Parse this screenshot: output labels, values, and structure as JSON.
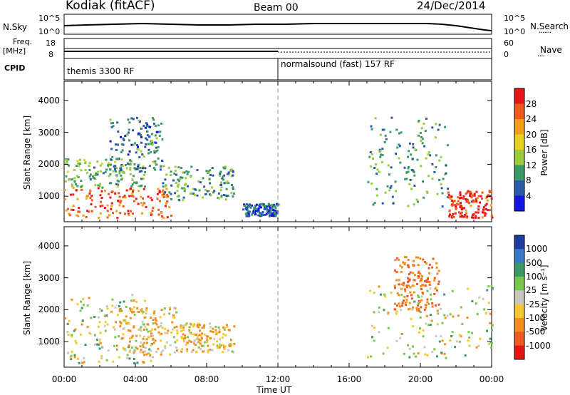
{
  "header": {
    "site": "Kodiak (fitACF)",
    "beam": "Beam 00",
    "date": "24/Dec/2014"
  },
  "panels": {
    "nsky": {
      "label": "N.Sky",
      "ticks": [
        "10^5",
        "10^0"
      ],
      "right_label": "N.Search",
      "right_ticks": [
        "10^5",
        "10^0"
      ]
    },
    "freq": {
      "label_line1": "Freq.",
      "label_line2": "[MHz]",
      "ticks": [
        "18",
        "8"
      ],
      "right_label": "Nave",
      "right_ticks": [
        "60",
        "0"
      ]
    },
    "cpid": {
      "label": "CPID",
      "segments": [
        "themis 3300 RF",
        "normalsound (fast) 157 RF"
      ]
    }
  },
  "colorbars": {
    "power": {
      "label": "Power [dB]",
      "ticks": [
        "28",
        "24",
        "20",
        "16",
        "12",
        "8",
        "4"
      ],
      "colors": [
        "#e8141a",
        "#f05a1a",
        "#f5a014",
        "#e8d21e",
        "#9ccb3c",
        "#3c9a64",
        "#2a5aa8",
        "#1414e6"
      ]
    },
    "velocity": {
      "label": "Velocity [m s⁻¹]",
      "ticks": [
        "1000",
        "500",
        "100",
        "25",
        "-25",
        "-100",
        "-500",
        "-1000"
      ],
      "colors": [
        "#1e3ca0",
        "#3c78c8",
        "#3c9a64",
        "#78c850",
        "#c8c8c0",
        "#f5c832",
        "#f58c1e",
        "#f05a1e",
        "#e81414"
      ]
    }
  },
  "chart_data": [
    {
      "type": "heatmap",
      "title": "",
      "ylabel": "Slant Range [km]",
      "xlabel": "",
      "ylim": [
        200,
        4600
      ],
      "yticks": [
        "1000",
        "2000",
        "3000",
        "4000"
      ],
      "colorbar": "Power [dB]",
      "regions": [
        {
          "t0": 0.0,
          "t1": 6.0,
          "r0": 350,
          "r1": 1300,
          "value_db": 26
        },
        {
          "t0": 0.0,
          "t1": 4.5,
          "r0": 1300,
          "r1": 2200,
          "value_db": 12
        },
        {
          "t0": 2.5,
          "t1": 5.5,
          "r0": 1800,
          "r1": 3500,
          "value_db": 8
        },
        {
          "t0": 5.5,
          "t1": 9.5,
          "r0": 900,
          "r1": 2000,
          "value_db": 10
        },
        {
          "t0": 10.0,
          "t1": 12.0,
          "r0": 400,
          "r1": 800,
          "value_db": 6
        },
        {
          "t0": 17.0,
          "t1": 21.5,
          "r0": 700,
          "r1": 3500,
          "value_db": 10
        },
        {
          "t0": 21.5,
          "t1": 24.0,
          "r0": 350,
          "r1": 1200,
          "value_db": 28
        }
      ]
    },
    {
      "type": "heatmap",
      "title": "",
      "ylabel": "Slant Range [km]",
      "xlabel": "Time UT",
      "ylim": [
        200,
        4600
      ],
      "yticks": [
        "1000",
        "2000",
        "3000",
        "4000"
      ],
      "xticks": [
        "00:00",
        "04:00",
        "08:00",
        "12:00",
        "16:00",
        "20:00",
        "00:00"
      ],
      "colorbar": "Velocity [m s⁻¹]",
      "regions": [
        {
          "t0": 0.0,
          "t1": 5.0,
          "r0": 350,
          "r1": 2500,
          "value_ms": 0
        },
        {
          "t0": 3.0,
          "t1": 6.5,
          "r0": 600,
          "r1": 2100,
          "value_ms": -100
        },
        {
          "t0": 6.5,
          "t1": 9.5,
          "r0": 700,
          "r1": 1600,
          "value_ms": -100
        },
        {
          "t0": 17.0,
          "t1": 24.0,
          "r0": 500,
          "r1": 2800,
          "value_ms": 0
        },
        {
          "t0": 18.5,
          "t1": 21.0,
          "r0": 2000,
          "r1": 3700,
          "value_ms": -500
        }
      ]
    }
  ]
}
